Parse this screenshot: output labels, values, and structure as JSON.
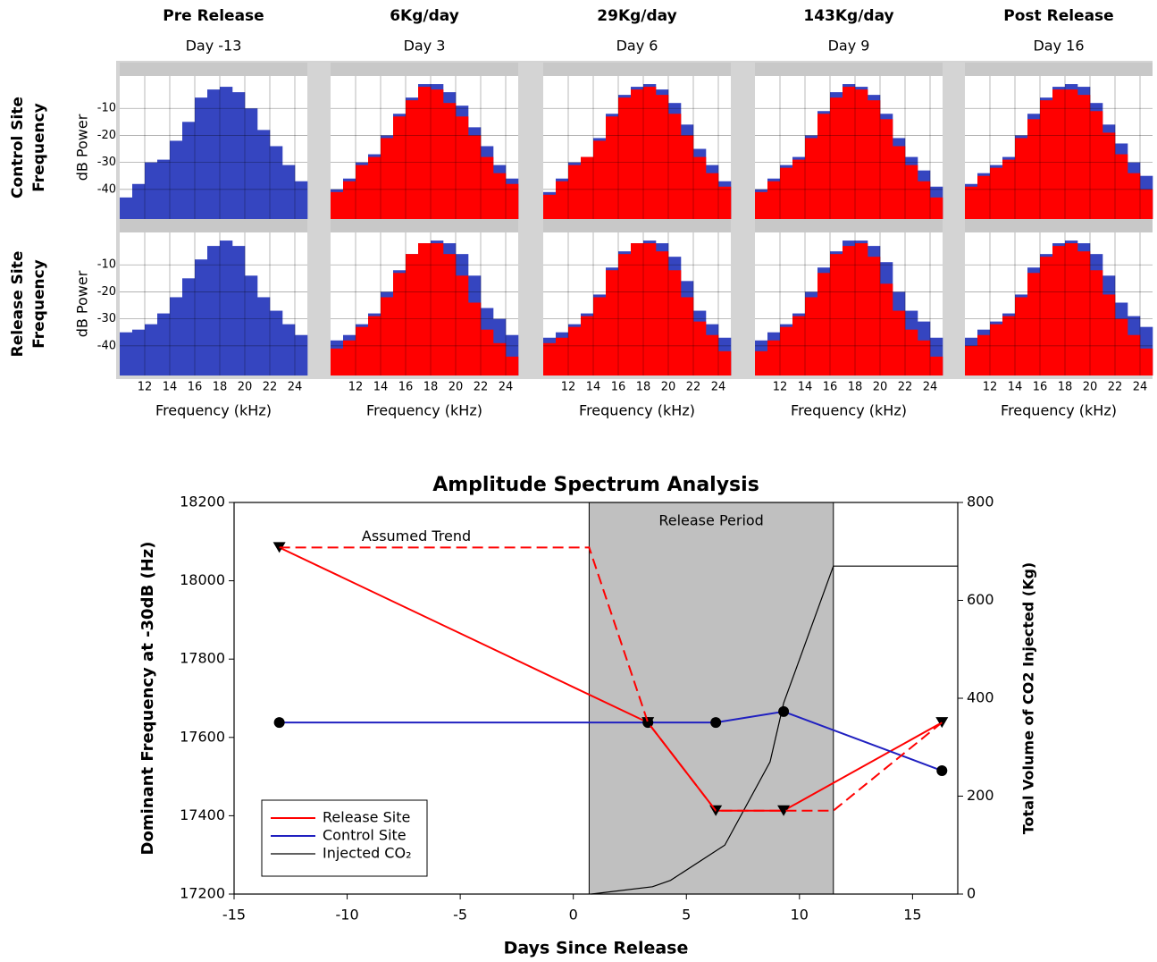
{
  "chart_data": [
    {
      "type": "histogram",
      "title": "Pre Release",
      "subtitle": "Day -13",
      "row_label": [
        "Control Site",
        "Frequency"
      ],
      "ylabel": "dB Power",
      "y_labels": true,
      "x_labels": false,
      "bins": [
        10,
        11,
        12,
        13,
        14,
        15,
        16,
        17,
        18,
        19,
        20,
        21,
        22,
        23,
        24,
        25
      ],
      "xlim": [
        10,
        25
      ],
      "xticks": [
        12,
        14,
        16,
        18,
        20,
        22,
        24
      ],
      "ylim": [
        -51,
        2
      ],
      "yticks": [
        -10,
        -20,
        -30,
        -40
      ],
      "grid": true,
      "series": [
        {
          "color": "#3545c0",
          "values": [
            -43,
            -38,
            -30,
            -29,
            -22,
            -15,
            -6,
            -3,
            -2,
            -4,
            -10,
            -18,
            -24,
            -31,
            -37
          ]
        }
      ]
    },
    {
      "type": "histogram",
      "title": "6Kg/day",
      "subtitle": "Day 3",
      "y_labels": false,
      "x_labels": false,
      "bins": [
        10,
        11,
        12,
        13,
        14,
        15,
        16,
        17,
        18,
        19,
        20,
        21,
        22,
        23,
        24,
        25
      ],
      "xlim": [
        10,
        25
      ],
      "xticks": [
        12,
        14,
        16,
        18,
        20,
        22,
        24
      ],
      "ylim": [
        -51,
        2
      ],
      "yticks": [
        -10,
        -20,
        -30,
        -40
      ],
      "grid": true,
      "series": [
        {
          "color": "#3545c0",
          "values": [
            -40,
            -36,
            -30,
            -27,
            -20,
            -12,
            -6,
            -1,
            -1,
            -4,
            -9,
            -17,
            -24,
            -31,
            -36
          ]
        },
        {
          "color": "#ff0000",
          "values": [
            -41,
            -37,
            -31,
            -28,
            -21,
            -13,
            -7,
            -2,
            -3,
            -8,
            -13,
            -20,
            -28,
            -34,
            -38
          ]
        }
      ]
    },
    {
      "type": "histogram",
      "title": "29Kg/day",
      "subtitle": "Day 6",
      "y_labels": false,
      "x_labels": false,
      "bins": [
        10,
        11,
        12,
        13,
        14,
        15,
        16,
        17,
        18,
        19,
        20,
        21,
        22,
        23,
        24,
        25
      ],
      "xlim": [
        10,
        25
      ],
      "xticks": [
        12,
        14,
        16,
        18,
        20,
        22,
        24
      ],
      "ylim": [
        -51,
        2
      ],
      "yticks": [
        -10,
        -20,
        -30,
        -40
      ],
      "grid": true,
      "series": [
        {
          "color": "#3545c0",
          "values": [
            -41,
            -36,
            -30,
            -28,
            -21,
            -12,
            -5,
            -2,
            -1,
            -3,
            -8,
            -16,
            -25,
            -31,
            -37
          ]
        },
        {
          "color": "#ff0000",
          "values": [
            -42,
            -37,
            -31,
            -28,
            -22,
            -13,
            -6,
            -3,
            -2,
            -5,
            -12,
            -20,
            -28,
            -34,
            -39
          ]
        }
      ]
    },
    {
      "type": "histogram",
      "title": "143Kg/day",
      "subtitle": "Day 9",
      "y_labels": false,
      "x_labels": false,
      "bins": [
        10,
        11,
        12,
        13,
        14,
        15,
        16,
        17,
        18,
        19,
        20,
        21,
        22,
        23,
        24,
        25
      ],
      "xlim": [
        10,
        25
      ],
      "xticks": [
        12,
        14,
        16,
        18,
        20,
        22,
        24
      ],
      "ylim": [
        -51,
        2
      ],
      "yticks": [
        -10,
        -20,
        -30,
        -40
      ],
      "grid": true,
      "series": [
        {
          "color": "#3545c0",
          "values": [
            -40,
            -36,
            -31,
            -28,
            -20,
            -11,
            -4,
            -1,
            -2,
            -5,
            -12,
            -21,
            -28,
            -33,
            -39
          ]
        },
        {
          "color": "#ff0000",
          "values": [
            -41,
            -37,
            -32,
            -29,
            -21,
            -12,
            -6,
            -2,
            -3,
            -7,
            -14,
            -24,
            -31,
            -37,
            -43
          ]
        }
      ]
    },
    {
      "type": "histogram",
      "title": "Post Release",
      "subtitle": "Day 16",
      "y_labels": false,
      "x_labels": false,
      "bins": [
        10,
        11,
        12,
        13,
        14,
        15,
        16,
        17,
        18,
        19,
        20,
        21,
        22,
        23,
        24,
        25
      ],
      "xlim": [
        10,
        25
      ],
      "xticks": [
        12,
        14,
        16,
        18,
        20,
        22,
        24
      ],
      "ylim": [
        -51,
        2
      ],
      "yticks": [
        -10,
        -20,
        -30,
        -40
      ],
      "grid": true,
      "series": [
        {
          "color": "#3545c0",
          "values": [
            -38,
            -34,
            -31,
            -28,
            -20,
            -12,
            -6,
            -2,
            -1,
            -2,
            -8,
            -16,
            -23,
            -30,
            -35
          ]
        },
        {
          "color": "#ff0000",
          "values": [
            -39,
            -35,
            -32,
            -29,
            -21,
            -14,
            -7,
            -3,
            -3,
            -5,
            -11,
            -19,
            -27,
            -34,
            -40
          ]
        }
      ]
    },
    {
      "type": "histogram",
      "row_label": [
        "Release Site",
        "Frequency"
      ],
      "ylabel": "dB Power",
      "xlabel": "Frequency (kHz)",
      "y_labels": true,
      "x_labels": true,
      "bins": [
        10,
        11,
        12,
        13,
        14,
        15,
        16,
        17,
        18,
        19,
        20,
        21,
        22,
        23,
        24,
        25
      ],
      "xlim": [
        10,
        25
      ],
      "xticks": [
        12,
        14,
        16,
        18,
        20,
        22,
        24
      ],
      "ylim": [
        -51,
        2
      ],
      "yticks": [
        -10,
        -20,
        -30,
        -40
      ],
      "grid": true,
      "series": [
        {
          "color": "#3545c0",
          "values": [
            -35,
            -34,
            -32,
            -28,
            -22,
            -15,
            -8,
            -3,
            -1,
            -3,
            -14,
            -22,
            -27,
            -32,
            -36
          ]
        }
      ]
    },
    {
      "type": "histogram",
      "xlabel": "Frequency (kHz)",
      "y_labels": false,
      "x_labels": true,
      "bins": [
        10,
        11,
        12,
        13,
        14,
        15,
        16,
        17,
        18,
        19,
        20,
        21,
        22,
        23,
        24,
        25
      ],
      "xlim": [
        10,
        25
      ],
      "xticks": [
        12,
        14,
        16,
        18,
        20,
        22,
        24
      ],
      "ylim": [
        -51,
        2
      ],
      "yticks": [
        -10,
        -20,
        -30,
        -40
      ],
      "grid": true,
      "series": [
        {
          "color": "#3545c0",
          "values": [
            -38,
            -36,
            -32,
            -28,
            -20,
            -12,
            -6,
            -2,
            -1,
            -2,
            -6,
            -14,
            -26,
            -30,
            -36
          ]
        },
        {
          "color": "#ff0000",
          "values": [
            -41,
            -38,
            -33,
            -29,
            -22,
            -13,
            -6,
            -2,
            -2,
            -6,
            -14,
            -24,
            -34,
            -39,
            -44
          ]
        }
      ]
    },
    {
      "type": "histogram",
      "xlabel": "Frequency (kHz)",
      "y_labels": false,
      "x_labels": true,
      "bins": [
        10,
        11,
        12,
        13,
        14,
        15,
        16,
        17,
        18,
        19,
        20,
        21,
        22,
        23,
        24,
        25
      ],
      "xlim": [
        10,
        25
      ],
      "xticks": [
        12,
        14,
        16,
        18,
        20,
        22,
        24
      ],
      "ylim": [
        -51,
        2
      ],
      "yticks": [
        -10,
        -20,
        -30,
        -40
      ],
      "grid": true,
      "series": [
        {
          "color": "#3545c0",
          "values": [
            -37,
            -35,
            -32,
            -28,
            -21,
            -11,
            -5,
            -2,
            -1,
            -2,
            -7,
            -16,
            -27,
            -32,
            -37
          ]
        },
        {
          "color": "#ff0000",
          "values": [
            -39,
            -37,
            -33,
            -29,
            -22,
            -12,
            -6,
            -2,
            -2,
            -5,
            -12,
            -22,
            -31,
            -36,
            -42
          ]
        }
      ]
    },
    {
      "type": "histogram",
      "xlabel": "Frequency (kHz)",
      "y_labels": false,
      "x_labels": true,
      "bins": [
        10,
        11,
        12,
        13,
        14,
        15,
        16,
        17,
        18,
        19,
        20,
        21,
        22,
        23,
        24,
        25
      ],
      "xlim": [
        10,
        25
      ],
      "xticks": [
        12,
        14,
        16,
        18,
        20,
        22,
        24
      ],
      "ylim": [
        -51,
        2
      ],
      "yticks": [
        -10,
        -20,
        -30,
        -40
      ],
      "grid": true,
      "series": [
        {
          "color": "#3545c0",
          "values": [
            -38,
            -35,
            -32,
            -28,
            -20,
            -11,
            -5,
            -1,
            -1,
            -3,
            -9,
            -20,
            -27,
            -31,
            -37
          ]
        },
        {
          "color": "#ff0000",
          "values": [
            -42,
            -38,
            -33,
            -29,
            -22,
            -13,
            -6,
            -3,
            -2,
            -7,
            -17,
            -27,
            -34,
            -38,
            -44
          ]
        }
      ]
    },
    {
      "type": "histogram",
      "xlabel": "Frequency (kHz)",
      "y_labels": false,
      "x_labels": true,
      "bins": [
        10,
        11,
        12,
        13,
        14,
        15,
        16,
        17,
        18,
        19,
        20,
        21,
        22,
        23,
        24,
        25
      ],
      "xlim": [
        10,
        25
      ],
      "xticks": [
        12,
        14,
        16,
        18,
        20,
        22,
        24
      ],
      "ylim": [
        -51,
        2
      ],
      "yticks": [
        -10,
        -20,
        -30,
        -40
      ],
      "grid": true,
      "series": [
        {
          "color": "#3545c0",
          "values": [
            -37,
            -34,
            -31,
            -28,
            -21,
            -11,
            -6,
            -2,
            -1,
            -2,
            -6,
            -14,
            -24,
            -29,
            -33
          ]
        },
        {
          "color": "#ff0000",
          "values": [
            -40,
            -36,
            -32,
            -29,
            -22,
            -13,
            -7,
            -3,
            -2,
            -5,
            -12,
            -21,
            -30,
            -36,
            -41
          ]
        }
      ]
    },
    {
      "type": "line",
      "title": "Amplitude Spectrum Analysis",
      "xlabel": "Days Since Release",
      "ylabel": "Dominant Frequency at -30dB (Hz)",
      "y2label": "Total Volume of CO2 Injected (Kg)",
      "xlim": [
        -15,
        17
      ],
      "xticks": [
        -15,
        -10,
        -5,
        0,
        5,
        10,
        15
      ],
      "ylim": [
        17200,
        18200
      ],
      "yticks": [
        17200,
        17400,
        17600,
        17800,
        18000,
        18200
      ],
      "y2lim": [
        0,
        800
      ],
      "y2ticks": [
        0,
        200,
        400,
        600,
        800
      ],
      "legend": "lower left",
      "span": {
        "label": "Release Period",
        "x": [
          0.7,
          11.5
        ],
        "color": "#c0c0c0"
      },
      "series": [
        {
          "name": "Release Site",
          "color": "#ff0000",
          "x": [
            -13,
            3.3,
            6.3,
            9.3,
            16.3
          ],
          "values": [
            18085,
            17638,
            17413,
            17413,
            17638
          ],
          "marker": "triangle-down"
        },
        {
          "name": "Control Site",
          "color": "#2020c0",
          "x": [
            -13,
            3.3,
            6.3,
            9.3,
            16.3
          ],
          "values": [
            17638,
            17638,
            17638,
            17666,
            17515
          ],
          "marker": "circle"
        },
        {
          "name": "Injected CO₂",
          "color": "#000000",
          "axis": "y2",
          "x": [
            0.8,
            3.5,
            4.3,
            6.7,
            8.7,
            9.3,
            11.5,
            17
          ],
          "values": [
            0,
            15,
            28,
            100,
            270,
            390,
            670,
            670
          ]
        },
        {
          "name": "Assumed Trend",
          "color": "#ff0000",
          "dash": true,
          "legend": false,
          "x": [
            -13,
            0.7,
            3.3,
            6.3,
            9.3,
            11.5,
            16.3
          ],
          "values": [
            18085,
            18085,
            17638,
            17413,
            17413,
            17413,
            17638
          ]
        }
      ]
    }
  ]
}
